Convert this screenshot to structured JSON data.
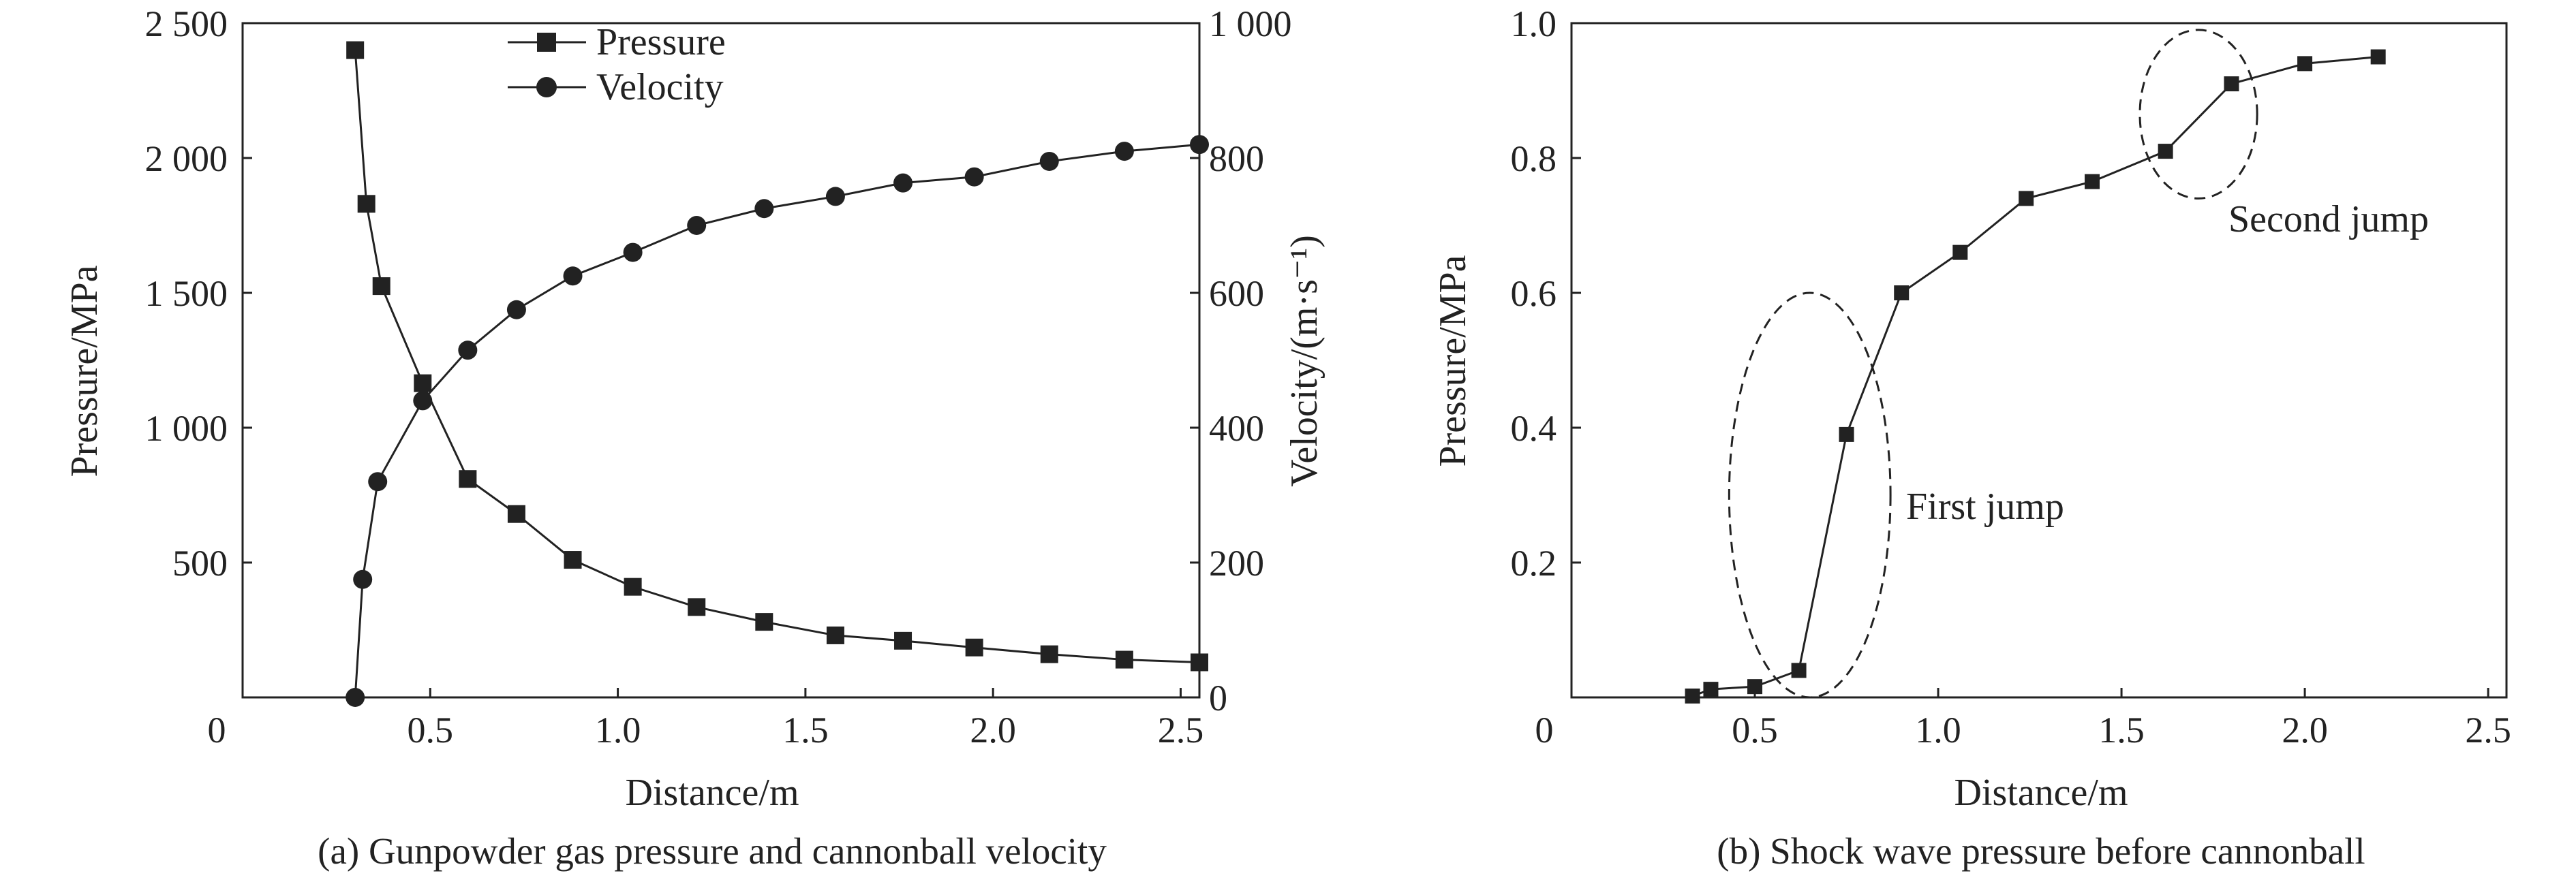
{
  "chart_data": [
    {
      "type": "line",
      "caption": "(a) Gunpowder gas pressure and cannonball velocity",
      "xlabel": "Distance/m",
      "ylabel": "Pressure/MPa",
      "y2label": "Velocity/(m·s⁻¹)",
      "xlim": [
        0,
        2.55
      ],
      "ylim": [
        0,
        2500
      ],
      "y2lim": [
        0,
        1000
      ],
      "x_ticks": [
        {
          "value": 0,
          "label": "0"
        },
        {
          "value": 0.5,
          "label": "0.5"
        },
        {
          "value": 1.0,
          "label": "1.0"
        },
        {
          "value": 1.5,
          "label": "1.5"
        },
        {
          "value": 2.0,
          "label": "2.0"
        },
        {
          "value": 2.5,
          "label": "2.5"
        }
      ],
      "y_ticks": [
        {
          "value": 500,
          "label": "500"
        },
        {
          "value": 1000,
          "label": "1 000"
        },
        {
          "value": 1500,
          "label": "1 500"
        },
        {
          "value": 2000,
          "label": "2 000"
        },
        {
          "value": 2500,
          "label": "2 500"
        }
      ],
      "y2_ticks": [
        {
          "value": 0,
          "label": "0"
        },
        {
          "value": 200,
          "label": "200"
        },
        {
          "value": 400,
          "label": "400"
        },
        {
          "value": 600,
          "label": "600"
        },
        {
          "value": 800,
          "label": "800"
        },
        {
          "value": 1000,
          "label": "1 000"
        }
      ],
      "legend": {
        "position": "top-center"
      },
      "grid": false,
      "series": [
        {
          "name": "Pressure",
          "axis": "left",
          "marker": "square",
          "x": [
            0.3,
            0.33,
            0.37,
            0.48,
            0.6,
            0.73,
            0.88,
            1.04,
            1.21,
            1.39,
            1.58,
            1.76,
            1.95,
            2.15,
            2.35,
            2.55
          ],
          "y": [
            2400,
            1830,
            1525,
            1165,
            810,
            680,
            510,
            410,
            335,
            280,
            230,
            210,
            185,
            160,
            140,
            130
          ]
        },
        {
          "name": "Velocity",
          "axis": "right",
          "marker": "circle",
          "x": [
            0.3,
            0.32,
            0.36,
            0.48,
            0.6,
            0.73,
            0.88,
            1.04,
            1.21,
            1.39,
            1.58,
            1.76,
            1.95,
            2.15,
            2.35,
            2.55
          ],
          "y": [
            0,
            175,
            320,
            440,
            515,
            575,
            625,
            660,
            700,
            725,
            743,
            763,
            772,
            795,
            810,
            820
          ]
        }
      ]
    },
    {
      "type": "line",
      "caption": "(b) Shock wave pressure before cannonball",
      "xlabel": "Distance/m",
      "ylabel": "Pressure/MPa",
      "xlim": [
        0,
        2.55
      ],
      "ylim": [
        0,
        1.0
      ],
      "x_ticks": [
        {
          "value": 0,
          "label": "0"
        },
        {
          "value": 0.5,
          "label": "0.5"
        },
        {
          "value": 1.0,
          "label": "1.0"
        },
        {
          "value": 1.5,
          "label": "1.5"
        },
        {
          "value": 2.0,
          "label": "2.0"
        },
        {
          "value": 2.5,
          "label": "2.5"
        }
      ],
      "y_ticks": [
        {
          "value": 0.2,
          "label": "0.2"
        },
        {
          "value": 0.4,
          "label": "0.4"
        },
        {
          "value": 0.6,
          "label": "0.6"
        },
        {
          "value": 0.8,
          "label": "0.8"
        },
        {
          "value": 1.0,
          "label": "1.0"
        }
      ],
      "grid": false,
      "series": [
        {
          "marker": "square",
          "x": [
            0.33,
            0.38,
            0.5,
            0.62,
            0.75,
            0.9,
            1.06,
            1.24,
            1.42,
            1.62,
            1.8,
            2.0,
            2.2
          ],
          "y": [
            0.002,
            0.012,
            0.016,
            0.04,
            0.39,
            0.6,
            0.66,
            0.74,
            0.765,
            0.81,
            0.91,
            0.94,
            0.95
          ]
        }
      ],
      "annotations": [
        {
          "text": "First jump",
          "ellipse": {
            "cx": 0.65,
            "cy": 0.3,
            "rx": 0.22,
            "ry": 0.3
          }
        },
        {
          "text": "Second jump",
          "ellipse": {
            "cx": 1.71,
            "cy": 0.865,
            "rx": 0.16,
            "ry": 0.125
          }
        }
      ]
    }
  ]
}
